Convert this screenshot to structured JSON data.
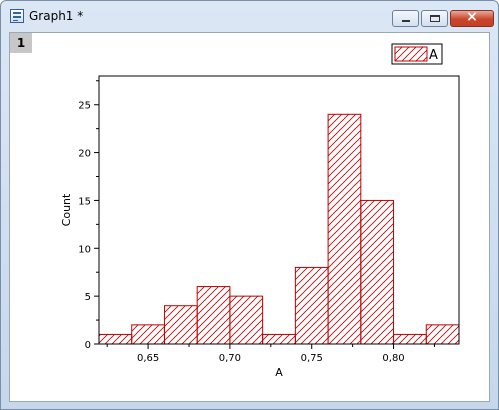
{
  "window": {
    "title": "Graph1 *"
  },
  "layer": {
    "label": "1"
  },
  "colors": {
    "bar_stroke": "#c00000",
    "axis": "#000000"
  },
  "chart_data": {
    "type": "bar",
    "xlabel": "A",
    "ylabel": "Count",
    "xlim": [
      0.62,
      0.84
    ],
    "ylim": [
      0,
      28
    ],
    "bin_width": 0.02,
    "bins": [
      {
        "start": 0.62,
        "count": 1
      },
      {
        "start": 0.64,
        "count": 2
      },
      {
        "start": 0.66,
        "count": 4
      },
      {
        "start": 0.68,
        "count": 6
      },
      {
        "start": 0.7,
        "count": 5
      },
      {
        "start": 0.72,
        "count": 1
      },
      {
        "start": 0.74,
        "count": 8
      },
      {
        "start": 0.76,
        "count": 24
      },
      {
        "start": 0.78,
        "count": 15
      },
      {
        "start": 0.8,
        "count": 1
      },
      {
        "start": 0.82,
        "count": 2
      }
    ],
    "x_ticks": [
      {
        "value": 0.65,
        "label": "0,65"
      },
      {
        "value": 0.7,
        "label": "0,70"
      },
      {
        "value": 0.75,
        "label": "0,75"
      },
      {
        "value": 0.8,
        "label": "0,80"
      }
    ],
    "y_ticks": [
      {
        "value": 0,
        "label": "0"
      },
      {
        "value": 5,
        "label": "5"
      },
      {
        "value": 10,
        "label": "10"
      },
      {
        "value": 15,
        "label": "15"
      },
      {
        "value": 20,
        "label": "20"
      },
      {
        "value": 25,
        "label": "25"
      }
    ],
    "legend": {
      "label": "A",
      "position": "top-right"
    }
  }
}
